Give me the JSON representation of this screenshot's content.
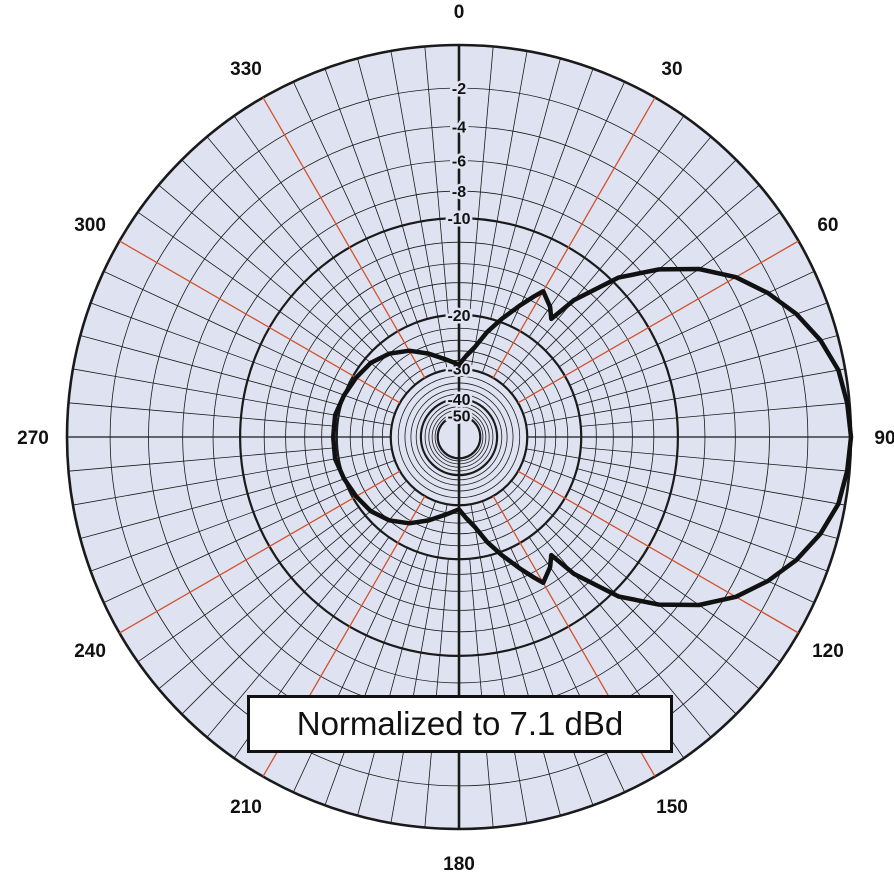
{
  "chart_data": {
    "type": "polar-line",
    "note": "Normalized to 7.1 dBd",
    "radial_scale": "dB",
    "radial_range_db": [
      -50,
      0
    ],
    "angular_tick_labels": [
      "0",
      "30",
      "60",
      "90",
      "120",
      "150",
      "180",
      "210",
      "240",
      "270",
      "300",
      "330"
    ],
    "radial_tick_labels": [
      "-2",
      "-4",
      "-6",
      "-8",
      "-10",
      "-20",
      "-30",
      "-40",
      "-50"
    ],
    "series": [
      {
        "points": [
          {
            "angle": 0,
            "db": -29
          },
          {
            "angle": 5,
            "db": -27
          },
          {
            "angle": 10,
            "db": -25
          },
          {
            "angle": 15,
            "db": -22
          },
          {
            "angle": 20,
            "db": -19.5
          },
          {
            "angle": 25,
            "db": -17
          },
          {
            "angle": 28,
            "db": -15.5
          },
          {
            "angle": 30,
            "db": -14.5
          },
          {
            "angle": 35,
            "db": -15.5
          },
          {
            "angle": 38,
            "db": -16.5
          },
          {
            "angle": 40,
            "db": -13.5
          },
          {
            "angle": 45,
            "db": -9.5
          },
          {
            "angle": 50,
            "db": -7
          },
          {
            "angle": 55,
            "db": -5
          },
          {
            "angle": 60,
            "db": -3.5
          },
          {
            "angle": 65,
            "db": -2.4
          },
          {
            "angle": 70,
            "db": -1.5
          },
          {
            "angle": 75,
            "db": -0.8
          },
          {
            "angle": 80,
            "db": -0.3
          },
          {
            "angle": 85,
            "db": -0.1
          },
          {
            "angle": 90,
            "db": 0
          },
          {
            "angle": 95,
            "db": -0.1
          },
          {
            "angle": 100,
            "db": -0.3
          },
          {
            "angle": 105,
            "db": -0.8
          },
          {
            "angle": 110,
            "db": -1.5
          },
          {
            "angle": 115,
            "db": -2.4
          },
          {
            "angle": 120,
            "db": -3.5
          },
          {
            "angle": 125,
            "db": -5
          },
          {
            "angle": 130,
            "db": -7
          },
          {
            "angle": 135,
            "db": -9.5
          },
          {
            "angle": 140,
            "db": -13.5
          },
          {
            "angle": 142,
            "db": -16.5
          },
          {
            "angle": 145,
            "db": -15.5
          },
          {
            "angle": 150,
            "db": -14.5
          },
          {
            "angle": 152,
            "db": -15.5
          },
          {
            "angle": 155,
            "db": -17
          },
          {
            "angle": 160,
            "db": -19.5
          },
          {
            "angle": 165,
            "db": -22
          },
          {
            "angle": 170,
            "db": -25
          },
          {
            "angle": 175,
            "db": -27
          },
          {
            "angle": 180,
            "db": -29
          },
          {
            "angle": 190,
            "db": -27.5
          },
          {
            "angle": 200,
            "db": -25.5
          },
          {
            "angle": 210,
            "db": -23.5
          },
          {
            "angle": 220,
            "db": -22
          },
          {
            "angle": 230,
            "db": -21
          },
          {
            "angle": 240,
            "db": -20.5
          },
          {
            "angle": 250,
            "db": -20
          },
          {
            "angle": 260,
            "db": -19.5
          },
          {
            "angle": 270,
            "db": -19.5
          },
          {
            "angle": 280,
            "db": -19.5
          },
          {
            "angle": 290,
            "db": -20
          },
          {
            "angle": 300,
            "db": -20.5
          },
          {
            "angle": 310,
            "db": -21
          },
          {
            "angle": 320,
            "db": -22
          },
          {
            "angle": 330,
            "db": -23.5
          },
          {
            "angle": 340,
            "db": -25.5
          },
          {
            "angle": 350,
            "db": -27.5
          },
          {
            "angle": 360,
            "db": -29
          }
        ]
      }
    ],
    "colors": {
      "plot_background": "#dfe3f1",
      "grid_line": "#1a1a1a",
      "major_spoke": "#d2522e",
      "pattern_line": "#111111"
    }
  }
}
